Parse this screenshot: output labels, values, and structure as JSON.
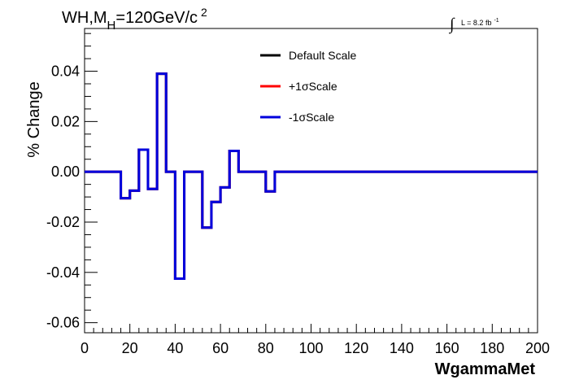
{
  "chart_data": {
    "type": "line",
    "style": "step",
    "title": {
      "prefix": "WH,M",
      "subscript": "H",
      "main": "=120GeV/c",
      "superscript": "2"
    },
    "annotation": {
      "integral": "∫",
      "text": "L = 8.2 fb",
      "superscript": "-1"
    },
    "xlabel": "WgammaMet",
    "ylabel": "% Change",
    "xlim": [
      0,
      200
    ],
    "ylim": [
      -0.064,
      0.057
    ],
    "x_ticks": [
      0,
      20,
      40,
      60,
      80,
      100,
      120,
      140,
      160,
      180,
      200
    ],
    "y_ticks": [
      "-0.06",
      "-0.04",
      "-0.02",
      "0.00",
      "0.02",
      "0.04"
    ],
    "grid": false,
    "legend_position": "top-center",
    "bin_edges": [
      0,
      4,
      8,
      12,
      16,
      20,
      24,
      28,
      32,
      36,
      40,
      44,
      48,
      52,
      56,
      60,
      64,
      68,
      72,
      76,
      80,
      84,
      88,
      92,
      96,
      100,
      104,
      108,
      112,
      116,
      120,
      124,
      128,
      132,
      136,
      140,
      144,
      148,
      152,
      156,
      160,
      164,
      168,
      172,
      176,
      180,
      184,
      188,
      192,
      196,
      200
    ],
    "series": [
      {
        "name": "Default Scale",
        "color": "#000000",
        "values": [
          0,
          0,
          0,
          0,
          -0.0105,
          -0.0075,
          0.0088,
          -0.0068,
          0.039,
          0,
          -0.0425,
          0,
          0,
          -0.0222,
          -0.012,
          -0.0062,
          0.0083,
          0,
          0,
          0,
          -0.0078,
          0,
          0,
          0,
          0,
          0,
          0,
          0,
          0,
          0,
          0,
          0,
          0,
          0,
          0,
          0,
          0,
          0,
          0,
          0,
          0,
          0,
          0,
          0,
          0,
          0,
          0,
          0,
          0,
          0
        ]
      },
      {
        "name": "+1σScale",
        "color": "#ff0000",
        "values": [
          0,
          0,
          0,
          0,
          -0.0105,
          -0.0075,
          0.0088,
          -0.0068,
          0.039,
          0,
          -0.0425,
          0,
          0,
          -0.0222,
          -0.012,
          -0.0062,
          0.0083,
          0,
          0,
          0,
          -0.0078,
          0,
          0,
          0,
          0,
          0,
          0,
          0,
          0,
          0,
          0,
          0,
          0,
          0,
          0,
          0,
          0,
          0,
          0,
          0,
          0,
          0,
          0,
          0,
          0,
          0,
          0,
          0,
          0,
          0
        ]
      },
      {
        "name": "-1σScale",
        "color": "#0000dd",
        "values": [
          0,
          0,
          0,
          0,
          -0.0105,
          -0.0075,
          0.0088,
          -0.0068,
          0.039,
          0,
          -0.0425,
          0,
          0,
          -0.0222,
          -0.012,
          -0.0062,
          0.0083,
          0,
          0,
          0,
          -0.0078,
          0,
          0,
          0,
          0,
          0,
          0,
          0,
          0,
          0,
          0,
          0,
          0,
          0,
          0,
          0,
          0,
          0,
          0,
          0,
          0,
          0,
          0,
          0,
          0,
          0,
          0,
          0,
          0,
          0
        ]
      }
    ]
  }
}
